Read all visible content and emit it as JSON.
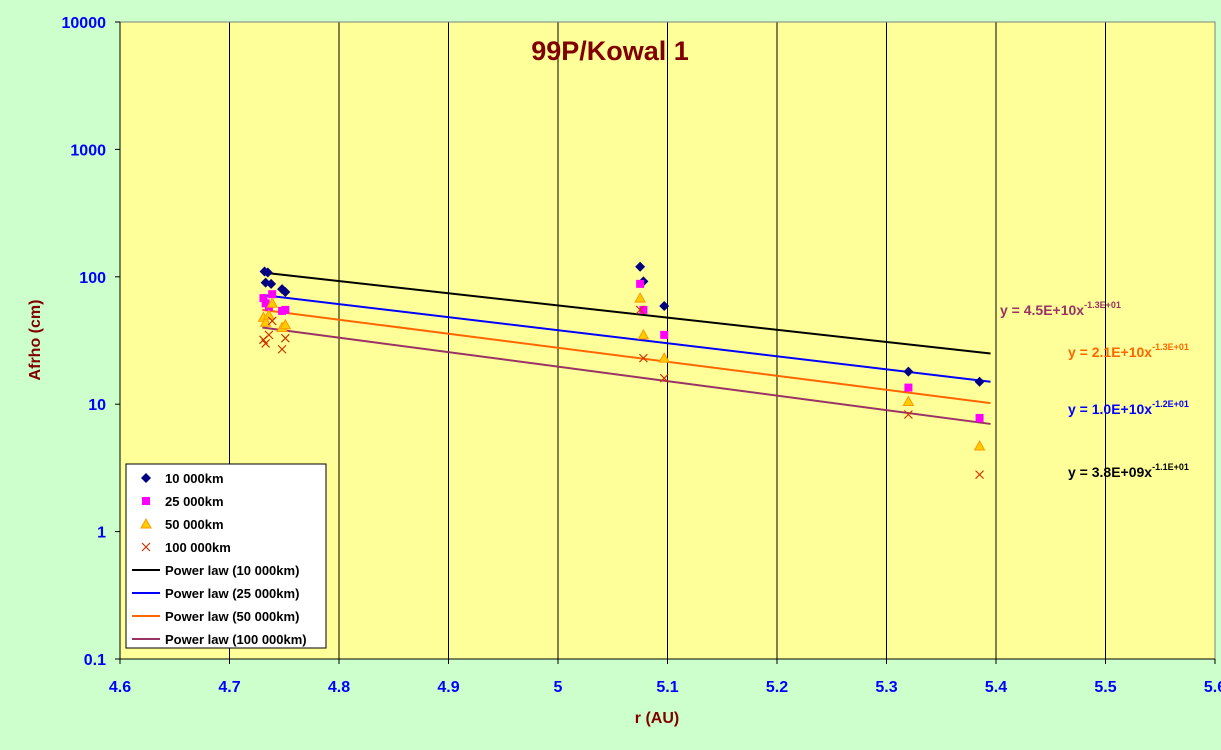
{
  "colors": {
    "background": "#ccffcc",
    "plot_area": "#ffff99",
    "title": "#800000",
    "axis_title": "#800000",
    "tick_labels": "#0000ff",
    "grid": "#000000"
  },
  "chart_data": {
    "type": "scatter",
    "title": "99P/Kowal 1",
    "xlabel": "r (AU)",
    "ylabel": "Afrho (cm)",
    "xlim": [
      4.6,
      5.6
    ],
    "ylim": [
      0.1,
      10000
    ],
    "yscale": "log",
    "x_ticks": [
      "4.6",
      "4.7",
      "4.8",
      "4.9",
      "5",
      "5.1",
      "5.2",
      "5.3",
      "5.4",
      "5.5",
      "5.6"
    ],
    "y_ticks": [
      "0.1",
      "1",
      "10",
      "100",
      "1000",
      "10000"
    ],
    "grid": {
      "vertical": true,
      "horizontal": false
    },
    "legend_position": "bottom-left",
    "series": [
      {
        "name": "10 000km",
        "marker": "diamond",
        "color": "#000080",
        "points": [
          [
            4.732,
            110
          ],
          [
            4.735,
            108
          ],
          [
            4.733,
            90
          ],
          [
            4.738,
            88
          ],
          [
            4.748,
            80
          ],
          [
            4.751,
            76
          ],
          [
            5.075,
            120
          ],
          [
            5.078,
            92
          ],
          [
            5.097,
            59
          ],
          [
            5.32,
            18
          ],
          [
            5.385,
            15
          ]
        ]
      },
      {
        "name": "25 000km",
        "marker": "square",
        "color": "#ff00ff",
        "points": [
          [
            4.731,
            68
          ],
          [
            4.733,
            62
          ],
          [
            4.736,
            58
          ],
          [
            4.739,
            73
          ],
          [
            4.748,
            54
          ],
          [
            4.751,
            55
          ],
          [
            5.075,
            88
          ],
          [
            5.078,
            55
          ],
          [
            5.097,
            35
          ],
          [
            5.32,
            13.5
          ],
          [
            5.385,
            7.8
          ]
        ]
      },
      {
        "name": "50 000km",
        "marker": "triangle",
        "color": "#ff9900",
        "points": [
          [
            4.731,
            48
          ],
          [
            4.733,
            44
          ],
          [
            4.736,
            50
          ],
          [
            4.739,
            62
          ],
          [
            4.748,
            40
          ],
          [
            4.751,
            42
          ],
          [
            5.075,
            68
          ],
          [
            5.078,
            35
          ],
          [
            5.097,
            23
          ],
          [
            5.32,
            10.5
          ],
          [
            5.385,
            4.7
          ]
        ]
      },
      {
        "name": "100 000km",
        "marker": "x",
        "color": "#cc3300",
        "points": [
          [
            4.731,
            32
          ],
          [
            4.733,
            30
          ],
          [
            4.736,
            35
          ],
          [
            4.739,
            45
          ],
          [
            4.748,
            27
          ],
          [
            4.751,
            33
          ],
          [
            5.075,
            55
          ],
          [
            5.078,
            23
          ],
          [
            5.097,
            16
          ],
          [
            5.32,
            8.3
          ],
          [
            5.385,
            2.8
          ]
        ]
      }
    ],
    "trendlines": [
      {
        "name": "Power law (10 000km)",
        "color": "#000000",
        "start": [
          4.73,
          108
        ],
        "end": [
          5.395,
          25
        ]
      },
      {
        "name": "Power law (25 000km)",
        "color": "#0000ff",
        "start": [
          4.73,
          72
        ],
        "end": [
          5.395,
          15
        ]
      },
      {
        "name": "Power law (50 000km)",
        "color": "#ff6600",
        "start": [
          4.73,
          55
        ],
        "end": [
          5.395,
          10.2
        ]
      },
      {
        "name": "Power law (100 000km)",
        "color": "#993366",
        "start": [
          4.73,
          40
        ],
        "end": [
          5.395,
          7
        ]
      }
    ],
    "equations": [
      {
        "base": "y = 4.5E+10x",
        "exponent": "-1.3E+01",
        "color": "#993366"
      },
      {
        "base": "y = 2.1E+10x",
        "exponent": "-1.3E+01",
        "color": "#ff6600"
      },
      {
        "base": "y = 1.0E+10x",
        "exponent": "-1.2E+01",
        "color": "#0000ff"
      },
      {
        "base": "y = 3.8E+09x",
        "exponent": "-1.1E+01",
        "color": "#000000"
      }
    ]
  }
}
